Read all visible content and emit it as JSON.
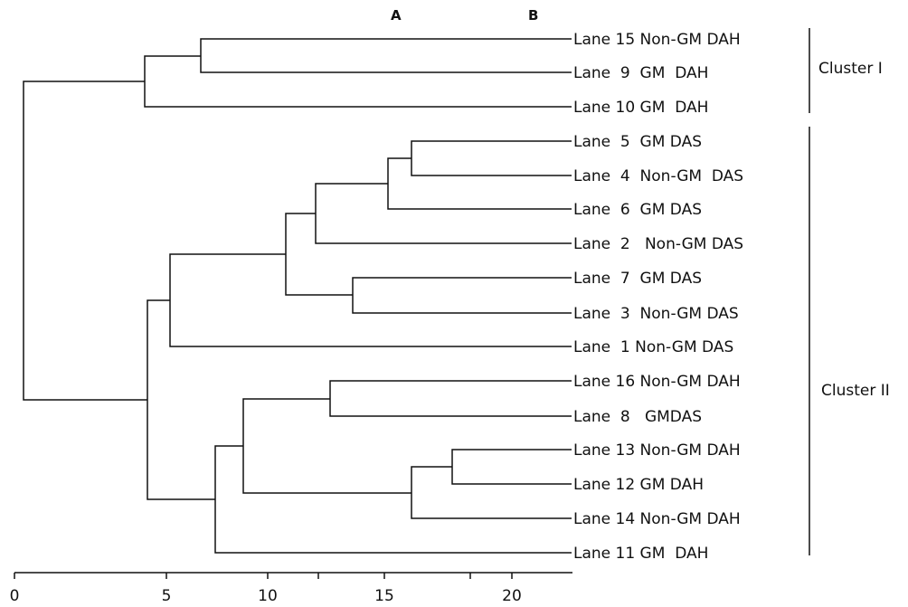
{
  "header": {
    "col_a": "A",
    "col_b": "B"
  },
  "axis": {
    "ticks": [
      "0",
      "5",
      "10",
      "15",
      "20"
    ]
  },
  "leaves": [
    {
      "label": "Lane 15 Non-GM DAH"
    },
    {
      "label": "Lane  9  GM  DAH"
    },
    {
      "label": "Lane 10 GM  DAH"
    },
    {
      "label": "Lane  5  GM DAS"
    },
    {
      "label": "Lane  4  Non-GM  DAS"
    },
    {
      "label": "Lane  6  GM DAS"
    },
    {
      "label": "Lane  2   Non-GM DAS"
    },
    {
      "label": "Lane  7  GM DAS"
    },
    {
      "label": "Lane  3  Non-GM DAS"
    },
    {
      "label": "Lane  1 Non-GM DAS"
    },
    {
      "label": "Lane 16 Non-GM DAH"
    },
    {
      "label": "Lane  8   GMDAS"
    },
    {
      "label": "Lane 13 Non-GM DAH"
    },
    {
      "label": "Lane 12 GM DAH"
    },
    {
      "label": "Lane 14 Non-GM DAH"
    },
    {
      "label": "Lane 11 GM  DAH"
    }
  ],
  "clusters": [
    {
      "label": "Cluster I"
    },
    {
      "label": "Cluster II"
    }
  ]
}
